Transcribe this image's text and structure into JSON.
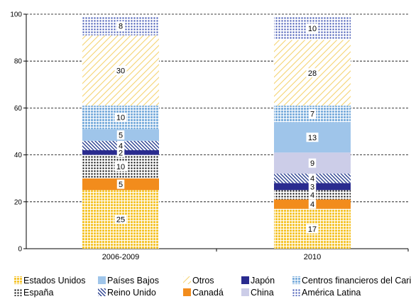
{
  "chart_data": {
    "type": "bar",
    "stacked": true,
    "categories": [
      "2006-2009",
      "2010"
    ],
    "ylim": [
      0,
      100
    ],
    "yticks": [
      0,
      20,
      40,
      60,
      80,
      100
    ],
    "grid": "horizontal-dashed",
    "legend_position": "bottom",
    "series": [
      {
        "name": "Estados Unidos",
        "values": [
          25,
          17
        ],
        "labels": [
          "25",
          "17"
        ],
        "color": "#f5c531",
        "pattern": "grid"
      },
      {
        "name": "Canadá",
        "values": [
          5,
          4
        ],
        "labels": [
          "5",
          "4"
        ],
        "color": "#f28c1c",
        "pattern": "solid"
      },
      {
        "name": "España",
        "values": [
          10,
          4
        ],
        "labels": [
          "10",
          "4"
        ],
        "color": "#000000",
        "pattern": "dots"
      },
      {
        "name": "Japón",
        "values": [
          2,
          3
        ],
        "labels": [
          "2",
          "3"
        ],
        "color": "#2a2b8f",
        "pattern": "solid"
      },
      {
        "name": "Reino Unido",
        "values": [
          4,
          4
        ],
        "labels": [
          "4",
          "4"
        ],
        "color": "#2a3f8f",
        "pattern": "diag"
      },
      {
        "name": "China",
        "values": [
          0,
          9
        ],
        "labels": [
          "",
          "9"
        ],
        "color": "#cccde8",
        "pattern": "solid"
      },
      {
        "name": "Países Bajos",
        "values": [
          5,
          13
        ],
        "labels": [
          "5",
          "13"
        ],
        "color": "#9fc5ea",
        "pattern": "solid"
      },
      {
        "name": "Centros financieros del Caribe",
        "values": [
          10,
          7
        ],
        "labels": [
          "10",
          "7"
        ],
        "color": "#7fb0dd",
        "pattern": "grid"
      },
      {
        "name": "Otros",
        "values": [
          30,
          28
        ],
        "labels": [
          "30",
          "28"
        ],
        "color": "#f5d472",
        "pattern": "lines"
      },
      {
        "name": "América Latina",
        "values": [
          8,
          10
        ],
        "labels": [
          "8",
          "10"
        ],
        "color": "#3a4fb0",
        "pattern": "dots"
      }
    ],
    "legend_rows": [
      [
        "Estados Unidos",
        "Países Bajos",
        "Otros",
        "Japón",
        "Centros financieros del Caribe"
      ],
      [
        "España",
        "Reino Unido",
        "Canadá",
        "China",
        "América Latina"
      ]
    ]
  }
}
